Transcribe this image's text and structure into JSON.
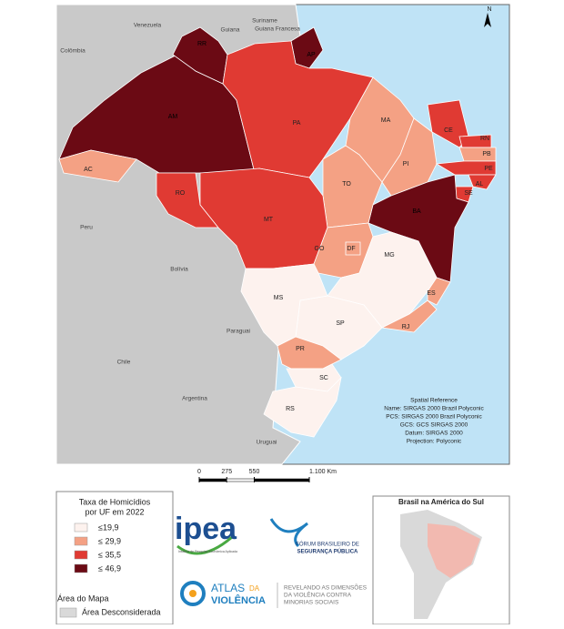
{
  "map": {
    "north": "N",
    "countries": [
      {
        "label": "Venezuela"
      },
      {
        "label": "Suriname"
      },
      {
        "label": "Guiana Francesa"
      },
      {
        "label": "Guiana"
      },
      {
        "label": "Colômbia"
      },
      {
        "label": "Peru"
      },
      {
        "label": "Bolívia"
      },
      {
        "label": "Paraguai"
      },
      {
        "label": "Chile"
      },
      {
        "label": "Argentina"
      },
      {
        "label": "Uruguai"
      }
    ],
    "states": [
      {
        "label": "AM",
        "color": "#6b0a14"
      },
      {
        "label": "RR",
        "color": "#6b0a14"
      },
      {
        "label": "AP",
        "color": "#6b0a14"
      },
      {
        "label": "PA",
        "color": "#e03a33"
      },
      {
        "label": "MA",
        "color": "#f4a184"
      },
      {
        "label": "PI",
        "color": "#f4a184"
      },
      {
        "label": "CE",
        "color": "#e03a33"
      },
      {
        "label": "RN",
        "color": "#e03a33"
      },
      {
        "label": "PB",
        "color": "#f4a184"
      },
      {
        "label": "PE",
        "color": "#e03a33"
      },
      {
        "label": "AL",
        "color": "#e03a33"
      },
      {
        "label": "SE",
        "color": "#e03a33"
      },
      {
        "label": "BA",
        "color": "#6b0a14"
      },
      {
        "label": "TO",
        "color": "#f4a184"
      },
      {
        "label": "AC",
        "color": "#f4a184"
      },
      {
        "label": "RO",
        "color": "#e03a33"
      },
      {
        "label": "MT",
        "color": "#e03a33"
      },
      {
        "label": "GO",
        "color": "#f4a184"
      },
      {
        "label": "DF",
        "color": "#f4a184"
      },
      {
        "label": "MG",
        "color": "#fdf2ee"
      },
      {
        "label": "ES",
        "color": "#f4a184"
      },
      {
        "label": "RJ",
        "color": "#f4a184"
      },
      {
        "label": "SP",
        "color": "#fdf2ee"
      },
      {
        "label": "MS",
        "color": "#fdf2ee"
      },
      {
        "label": "PR",
        "color": "#f4a184"
      },
      {
        "label": "SC",
        "color": "#fdf2ee"
      },
      {
        "label": "RS",
        "color": "#fdf2ee"
      }
    ],
    "spatial_reference": [
      "Spatial Reference",
      "Name: SIRGAS 2000 Brazil Polyconic",
      "PCS: SIRGAS 2000 Brazil Polyconic",
      "GCS: GCS SIRGAS 2000",
      "Datum: SIRGAS 2000",
      "Projection: Polyconic"
    ],
    "scale": {
      "ticks": [
        0,
        275,
        550,
        {
          "value": 1100,
          "label": "1.100 Km"
        }
      ]
    }
  },
  "legend": {
    "title": [
      "Taxa de Homicídios",
      "por UF em 2022"
    ],
    "items": [
      {
        "label": "≤19,9",
        "color": "#fdf2ee"
      },
      {
        "label": "≤ 29,9",
        "color": "#f4a184"
      },
      {
        "label": "≤ 35,5",
        "color": "#e03a33"
      },
      {
        "label": "≤ 46,9",
        "color": "#6b0a14"
      }
    ],
    "area_title": "Área do Mapa",
    "area_item": {
      "label": "Área Desconsiderada",
      "color": "#d9d9d9"
    }
  },
  "inset": {
    "title": "Brasil na América do Sul"
  },
  "logos": {
    "ipea": "ipea",
    "ipea_sub": "Instituto de Pesquisa Econômica Aplicada",
    "forum": [
      "FÓRUM BRASILEIRO DE",
      "SEGURANÇA PÚBLICA"
    ],
    "atlas": [
      "ATLAS",
      "DA",
      "VIOLÊNCIA"
    ],
    "atlas_sub": [
      "REVELANDO AS DIMENSÕES",
      "DA VIOLÊNCIA CONTRA",
      "MINORIAS SOCIAIS"
    ]
  }
}
